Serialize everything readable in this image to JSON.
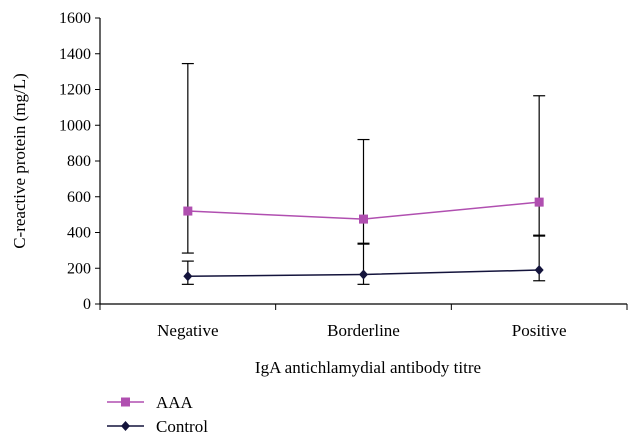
{
  "chart_data": {
    "type": "line",
    "title": "",
    "xlabel": "IgA antichlamydial antibody titre",
    "ylabel": "C-reactive protein (mg/L)",
    "categories": [
      "Negative",
      "Borderline",
      "Positive"
    ],
    "ylim": [
      0,
      1600
    ],
    "yticks": [
      0,
      200,
      400,
      600,
      800,
      1000,
      1200,
      1400,
      1600
    ],
    "grid": false,
    "legend_position": "bottom-left",
    "series": [
      {
        "name": "AAA",
        "color": "#b04fb0",
        "marker": "square",
        "values": [
          520,
          475,
          570
        ],
        "error_low": [
          285,
          335,
          380
        ],
        "error_high": [
          1345,
          920,
          1165
        ]
      },
      {
        "name": "Control",
        "color": "#14143c",
        "marker": "diamond",
        "values": [
          155,
          165,
          190
        ],
        "error_low": [
          110,
          110,
          130
        ],
        "error_high": [
          240,
          340,
          385
        ]
      }
    ]
  }
}
